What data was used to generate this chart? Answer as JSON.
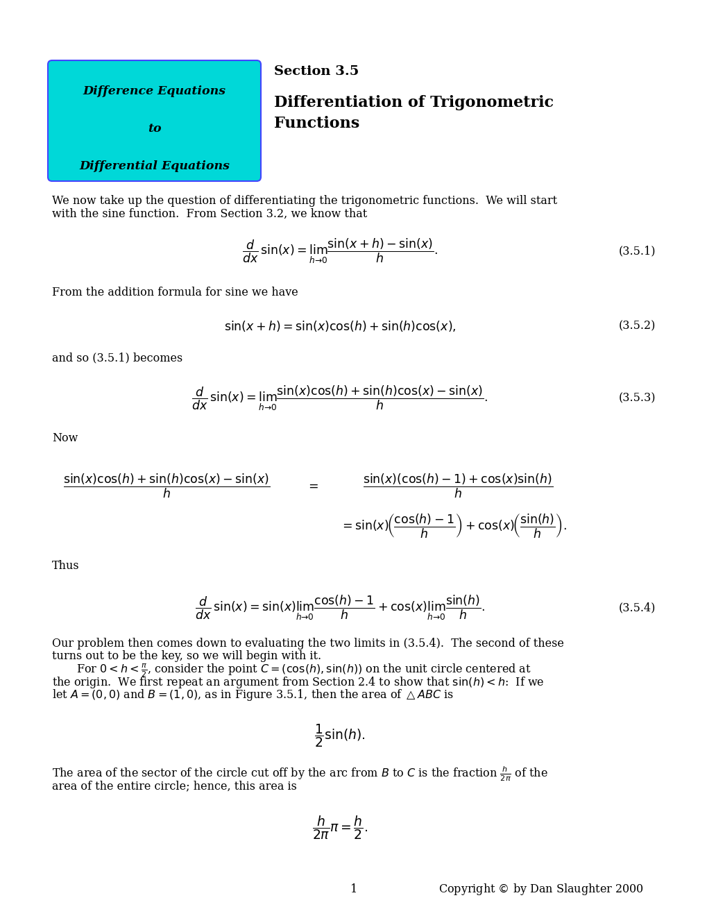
{
  "bg_color": "#ffffff",
  "cyan_box_color": "#00d8d8",
  "cyan_box_border": "#4444ff",
  "box_text_line1": "Difference Equations",
  "box_text_line2": "to",
  "box_text_line3": "Differential Equations",
  "section_label": "Section 3.5",
  "section_title_line1": "Differentiation of Trigonometric",
  "section_title_line2": "Functions",
  "label_351": "(3.5.1)",
  "label_352": "(3.5.2)",
  "label_353": "(3.5.3)",
  "label_354": "(3.5.4)",
  "footer_page": "1",
  "footer_copy": "Copyright \\copyright  by Dan Slaughter 2000"
}
